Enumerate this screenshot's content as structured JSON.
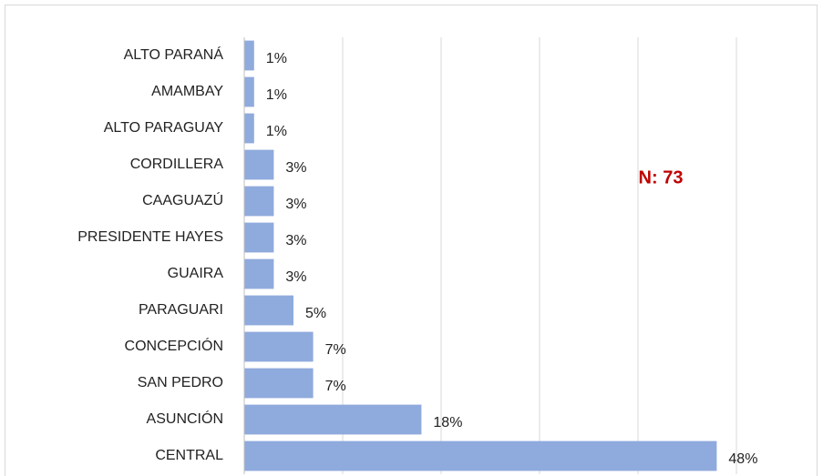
{
  "chart_data": {
    "type": "bar",
    "orientation": "horizontal",
    "categories": [
      "ALTO PARANÁ",
      "AMAMBAY",
      "ALTO PARAGUAY",
      "CORDILLERA",
      "CAAGUAZÚ",
      "PRESIDENTE HAYES",
      "GUAIRA",
      "PARAGUARI",
      "CONCEPCIÓN",
      "SAN PEDRO",
      "ASUNCIÓN",
      "CENTRAL"
    ],
    "values": [
      1,
      1,
      1,
      3,
      3,
      3,
      3,
      5,
      7,
      7,
      18,
      48
    ],
    "value_labels": [
      "1%",
      "1%",
      "1%",
      "3%",
      "3%",
      "3%",
      "3%",
      "5%",
      "7%",
      "7%",
      "18%",
      "48%"
    ],
    "color": "#8faadc",
    "xlim": [
      0,
      50
    ],
    "xticks": [
      0,
      10,
      20,
      30,
      40,
      50
    ],
    "grid": true,
    "annotation": "N: 73"
  }
}
